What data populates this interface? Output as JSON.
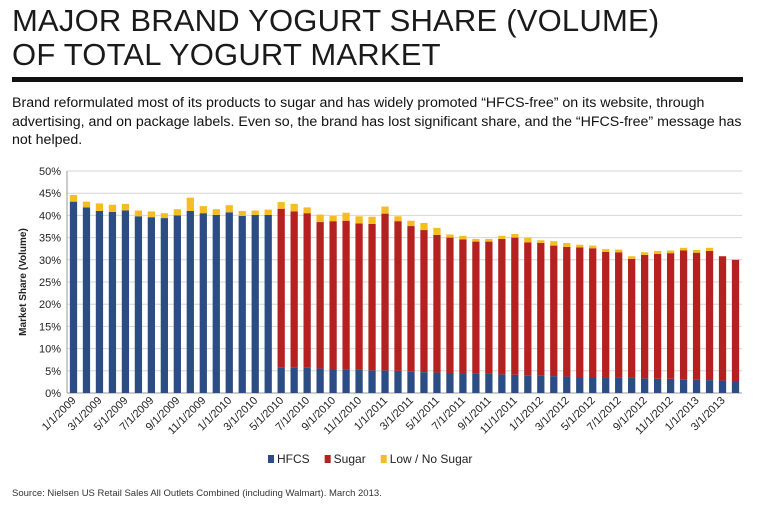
{
  "header": {
    "title": "MAJOR BRAND YOGURT SHARE (VOLUME)\nOF TOTAL YOGURT MARKET",
    "subtitle": "Brand reformulated most of its products to sugar and has widely promoted “HFCS-free” on its website, through advertising, and on package labels. Even so, the brand has lost significant share, and the “HFCS-free” message has not helped."
  },
  "footer": {
    "source": "Source: Nielsen US Retail Sales All Outlets Combined (including Walmart). March 2013."
  },
  "colors": {
    "hfcs": "#2B4D84",
    "sugar": "#B42120",
    "low_no_sugar": "#F4BE22",
    "grid": "#D6D6D6"
  },
  "chart_data": {
    "type": "bar",
    "stacked": true,
    "ylabel": "Market Share (Volume)",
    "ylim": [
      0,
      0.5
    ],
    "yticks": [
      "0%",
      "5%",
      "10%",
      "15%",
      "20%",
      "25%",
      "30%",
      "35%",
      "40%",
      "45%",
      "50%"
    ],
    "grid": true,
    "legend_position": "bottom",
    "categories": [
      "1/1/2009",
      "",
      "3/1/2009",
      "",
      "5/1/2009",
      "",
      "7/1/2009",
      "",
      "9/1/2009",
      "",
      "11/1/2009",
      "",
      "1/1/2010",
      "",
      "3/1/2010",
      "",
      "5/1/2010",
      "",
      "7/1/2010",
      "",
      "9/1/2010",
      "",
      "11/1/2010",
      "",
      "1/1/2011",
      "",
      "3/1/2011",
      "",
      "5/1/2011",
      "",
      "7/1/2011",
      "",
      "9/1/2011",
      "",
      "11/1/2011",
      "",
      "1/1/2012",
      "",
      "3/1/2012",
      "",
      "5/1/2012",
      "",
      "7/1/2012",
      "",
      "9/1/2012",
      "",
      "11/1/2012",
      "",
      "1/1/2013",
      "",
      "3/1/2013",
      ""
    ],
    "series": [
      {
        "name": "HFCS",
        "color": "#2B4D84",
        "values": [
          0.431,
          0.418,
          0.41,
          0.408,
          0.411,
          0.398,
          0.396,
          0.394,
          0.4,
          0.41,
          0.405,
          0.401,
          0.407,
          0.399,
          0.401,
          0.401,
          0.058,
          0.058,
          0.057,
          0.055,
          0.054,
          0.052,
          0.052,
          0.051,
          0.051,
          0.05,
          0.049,
          0.047,
          0.046,
          0.045,
          0.044,
          0.043,
          0.043,
          0.042,
          0.041,
          0.04,
          0.039,
          0.038,
          0.037,
          0.036,
          0.036,
          0.035,
          0.034,
          0.034,
          0.033,
          0.032,
          0.032,
          0.031,
          0.03,
          0.029,
          0.028,
          0.027
        ]
      },
      {
        "name": "Sugar",
        "color": "#B42120",
        "values": [
          0,
          0,
          0,
          0,
          0,
          0,
          0,
          0,
          0,
          0,
          0,
          0,
          0,
          0,
          0,
          0,
          0.357,
          0.351,
          0.348,
          0.33,
          0.333,
          0.336,
          0.33,
          0.33,
          0.353,
          0.337,
          0.327,
          0.32,
          0.31,
          0.305,
          0.302,
          0.298,
          0.298,
          0.305,
          0.309,
          0.299,
          0.299,
          0.294,
          0.292,
          0.292,
          0.29,
          0.283,
          0.283,
          0.268,
          0.278,
          0.281,
          0.283,
          0.29,
          0.286,
          0.291,
          0.28,
          0.273
        ]
      },
      {
        "name": "Low / No Sugar",
        "color": "#F4BE22",
        "values": [
          0.015,
          0.013,
          0.017,
          0.016,
          0.015,
          0.013,
          0.013,
          0.011,
          0.014,
          0.03,
          0.016,
          0.013,
          0.016,
          0.011,
          0.01,
          0.012,
          0.015,
          0.017,
          0.013,
          0.017,
          0.012,
          0.018,
          0.016,
          0.016,
          0.016,
          0.011,
          0.012,
          0.016,
          0.016,
          0.007,
          0.008,
          0.006,
          0.006,
          0.007,
          0.008,
          0.011,
          0.006,
          0.01,
          0.009,
          0.006,
          0.006,
          0.006,
          0.006,
          0.006,
          0.006,
          0.007,
          0.006,
          0.006,
          0.006,
          0.007,
          0.0,
          0.0
        ]
      }
    ]
  }
}
